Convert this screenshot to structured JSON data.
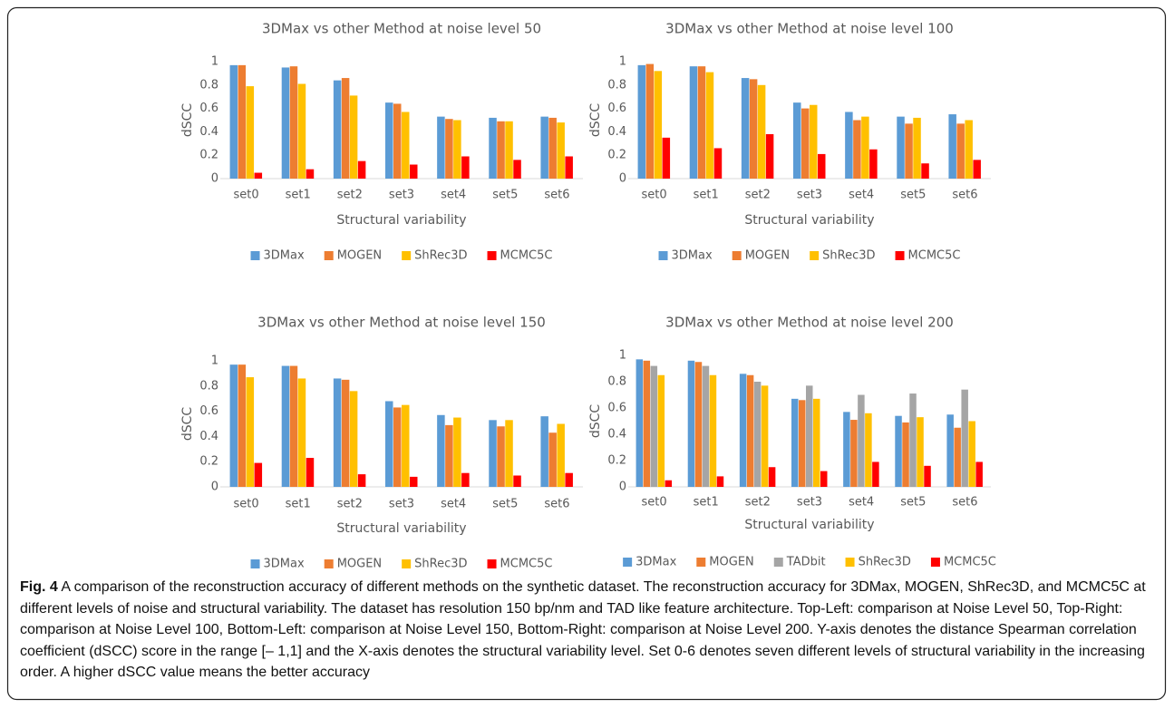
{
  "chart_data": [
    {
      "type": "bar",
      "title": "3DMax vs other Method at noise level 50",
      "x_label": "Structural variability",
      "y_label": "dSCC",
      "categories": [
        "set0",
        "set1",
        "set2",
        "set3",
        "set4",
        "set5",
        "set6"
      ],
      "series": [
        {
          "name": "3DMax",
          "color": "#5b9bd5",
          "values": [
            0.97,
            0.95,
            0.84,
            0.65,
            0.53,
            0.52,
            0.53
          ]
        },
        {
          "name": "MOGEN",
          "color": "#ed7d31",
          "values": [
            0.97,
            0.96,
            0.86,
            0.64,
            0.51,
            0.49,
            0.52
          ]
        },
        {
          "name": "ShRec3D",
          "color": "#ffc000",
          "values": [
            0.79,
            0.81,
            0.71,
            0.57,
            0.5,
            0.49,
            0.48
          ]
        },
        {
          "name": "MCMC5C",
          "color": "#ff0000",
          "values": [
            0.05,
            0.08,
            0.15,
            0.12,
            0.19,
            0.16,
            0.19
          ]
        }
      ],
      "ylim": [
        0,
        1
      ],
      "yticks": [
        0,
        0.2,
        0.4,
        0.6,
        0.8,
        1
      ]
    },
    {
      "type": "bar",
      "title": "3DMax vs other Method at noise level 100",
      "x_label": "Structural variability",
      "y_label": "dSCC",
      "categories": [
        "set0",
        "set1",
        "set2",
        "set3",
        "set4",
        "set5",
        "set6"
      ],
      "series": [
        {
          "name": "3DMax",
          "color": "#5b9bd5",
          "values": [
            0.97,
            0.96,
            0.86,
            0.65,
            0.57,
            0.53,
            0.55
          ]
        },
        {
          "name": "MOGEN",
          "color": "#ed7d31",
          "values": [
            0.98,
            0.96,
            0.85,
            0.6,
            0.5,
            0.47,
            0.47
          ]
        },
        {
          "name": "ShRec3D",
          "color": "#ffc000",
          "values": [
            0.92,
            0.91,
            0.8,
            0.63,
            0.53,
            0.52,
            0.5
          ]
        },
        {
          "name": "MCMC5C",
          "color": "#ff0000",
          "values": [
            0.35,
            0.26,
            0.38,
            0.21,
            0.25,
            0.13,
            0.16
          ]
        }
      ],
      "ylim": [
        0,
        1
      ],
      "yticks": [
        0,
        0.2,
        0.4,
        0.6,
        0.8,
        1
      ]
    },
    {
      "type": "bar",
      "title": "3DMax vs other Method at noise level 150",
      "x_label": "Structural variability",
      "y_label": "dSCC",
      "categories": [
        "set0",
        "set1",
        "set2",
        "set3",
        "set4",
        "set5",
        "set6"
      ],
      "series": [
        {
          "name": "3DMax",
          "color": "#5b9bd5",
          "values": [
            0.97,
            0.96,
            0.86,
            0.68,
            0.57,
            0.53,
            0.56
          ]
        },
        {
          "name": "MOGEN",
          "color": "#ed7d31",
          "values": [
            0.97,
            0.96,
            0.85,
            0.63,
            0.49,
            0.48,
            0.43
          ]
        },
        {
          "name": "ShRec3D",
          "color": "#ffc000",
          "values": [
            0.87,
            0.86,
            0.76,
            0.65,
            0.55,
            0.53,
            0.5
          ]
        },
        {
          "name": "MCMC5C",
          "color": "#ff0000",
          "values": [
            0.19,
            0.23,
            0.1,
            0.08,
            0.11,
            0.09,
            0.11
          ]
        }
      ],
      "ylim": [
        0,
        1
      ],
      "yticks": [
        0,
        0.2,
        0.4,
        0.6,
        0.8,
        1
      ]
    },
    {
      "type": "bar",
      "title": "3DMax vs other Method at noise level 200",
      "x_label": "Structural variability",
      "y_label": "dSCC",
      "categories": [
        "set0",
        "set1",
        "set2",
        "set3",
        "set4",
        "set5",
        "set6"
      ],
      "series": [
        {
          "name": "3DMax",
          "color": "#5b9bd5",
          "values": [
            0.97,
            0.96,
            0.86,
            0.67,
            0.57,
            0.54,
            0.55
          ]
        },
        {
          "name": "MOGEN",
          "color": "#ed7d31",
          "values": [
            0.96,
            0.95,
            0.85,
            0.66,
            0.51,
            0.49,
            0.45
          ]
        },
        {
          "name": "TADbit",
          "color": "#a5a5a5",
          "values": [
            0.92,
            0.92,
            0.8,
            0.77,
            0.7,
            0.71,
            0.74
          ]
        },
        {
          "name": "ShRec3D",
          "color": "#ffc000",
          "values": [
            0.85,
            0.85,
            0.77,
            0.67,
            0.56,
            0.53,
            0.5
          ]
        },
        {
          "name": "MCMC5C",
          "color": "#ff0000",
          "values": [
            0.05,
            0.08,
            0.15,
            0.12,
            0.19,
            0.16,
            0.19
          ]
        }
      ],
      "ylim": [
        0,
        1
      ],
      "yticks": [
        0,
        0.2,
        0.4,
        0.6,
        0.8,
        1
      ]
    }
  ],
  "caption": {
    "label": "Fig. 4",
    "text": "A comparison of the reconstruction accuracy of different methods on the synthetic dataset. The reconstruction accuracy for 3DMax, MOGEN, ShRec3D, and MCMC5C at different levels of noise and structural variability. The dataset has resolution 150 bp/nm and TAD like feature architecture. Top-Left: comparison at Noise Level 50, Top-Right: comparison at Noise Level 100, Bottom-Left: comparison at Noise Level 150, Bottom-Right: comparison at Noise Level 200. Y-axis denotes the distance Spearman correlation coefficient (dSCC) score in the range [– 1,1] and the X-axis denotes the structural variability level. Set 0-6 denotes seven different levels of structural variability in the increasing order. A higher dSCC value means the better accuracy"
  }
}
